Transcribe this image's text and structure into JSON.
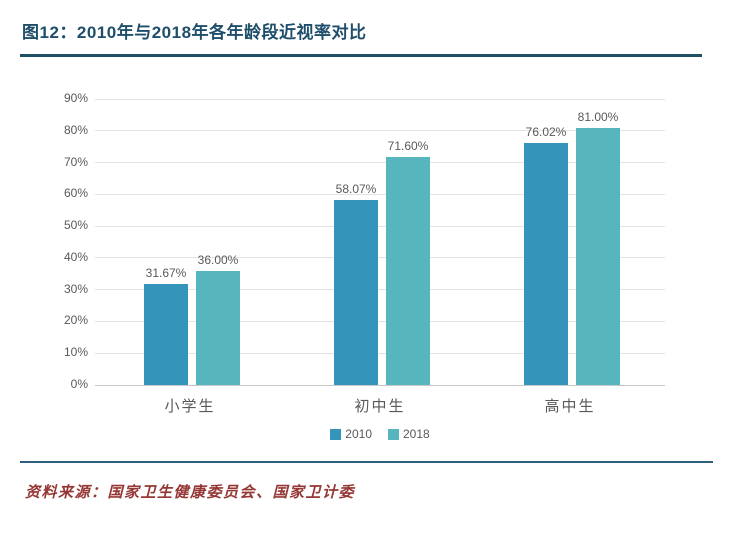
{
  "figure": {
    "title": "图12：2010年与2018年各年龄段近视率对比",
    "source": "资料来源：国家卫生健康委员会、国家卫计委"
  },
  "colors": {
    "title_text": "#1F4E6A",
    "title_rule": "#1F5063",
    "bottom_rule": "#2E607F",
    "axis_text": "#595959",
    "gridline": "#E3E3E3",
    "baseline": "#C9C9C9",
    "source_text": "#953735",
    "bar_2010": "#3494BA",
    "bar_2018": "#57B6BD"
  },
  "chart_data": {
    "type": "bar",
    "title": "图12：2010年与2018年各年龄段近视率对比",
    "categories": [
      "小学生",
      "初中生",
      "高中生"
    ],
    "series": [
      {
        "name": "2010",
        "color": "#3494BA",
        "values": [
          31.67,
          58.07,
          76.02
        ],
        "labels": [
          "31.67%",
          "58.07%",
          "76.02%"
        ]
      },
      {
        "name": "2018",
        "color": "#57B6BD",
        "values": [
          36.0,
          71.6,
          81.0
        ],
        "labels": [
          "36.00%",
          "71.60%",
          "81.00%"
        ]
      }
    ],
    "xlabel": "",
    "ylabel": "",
    "ylim": [
      0,
      90
    ],
    "ytick_step": 10,
    "ytick_labels": [
      "0%",
      "10%",
      "20%",
      "30%",
      "40%",
      "50%",
      "60%",
      "70%",
      "80%",
      "90%"
    ],
    "grid": true,
    "legend_position": "bottom-center"
  }
}
